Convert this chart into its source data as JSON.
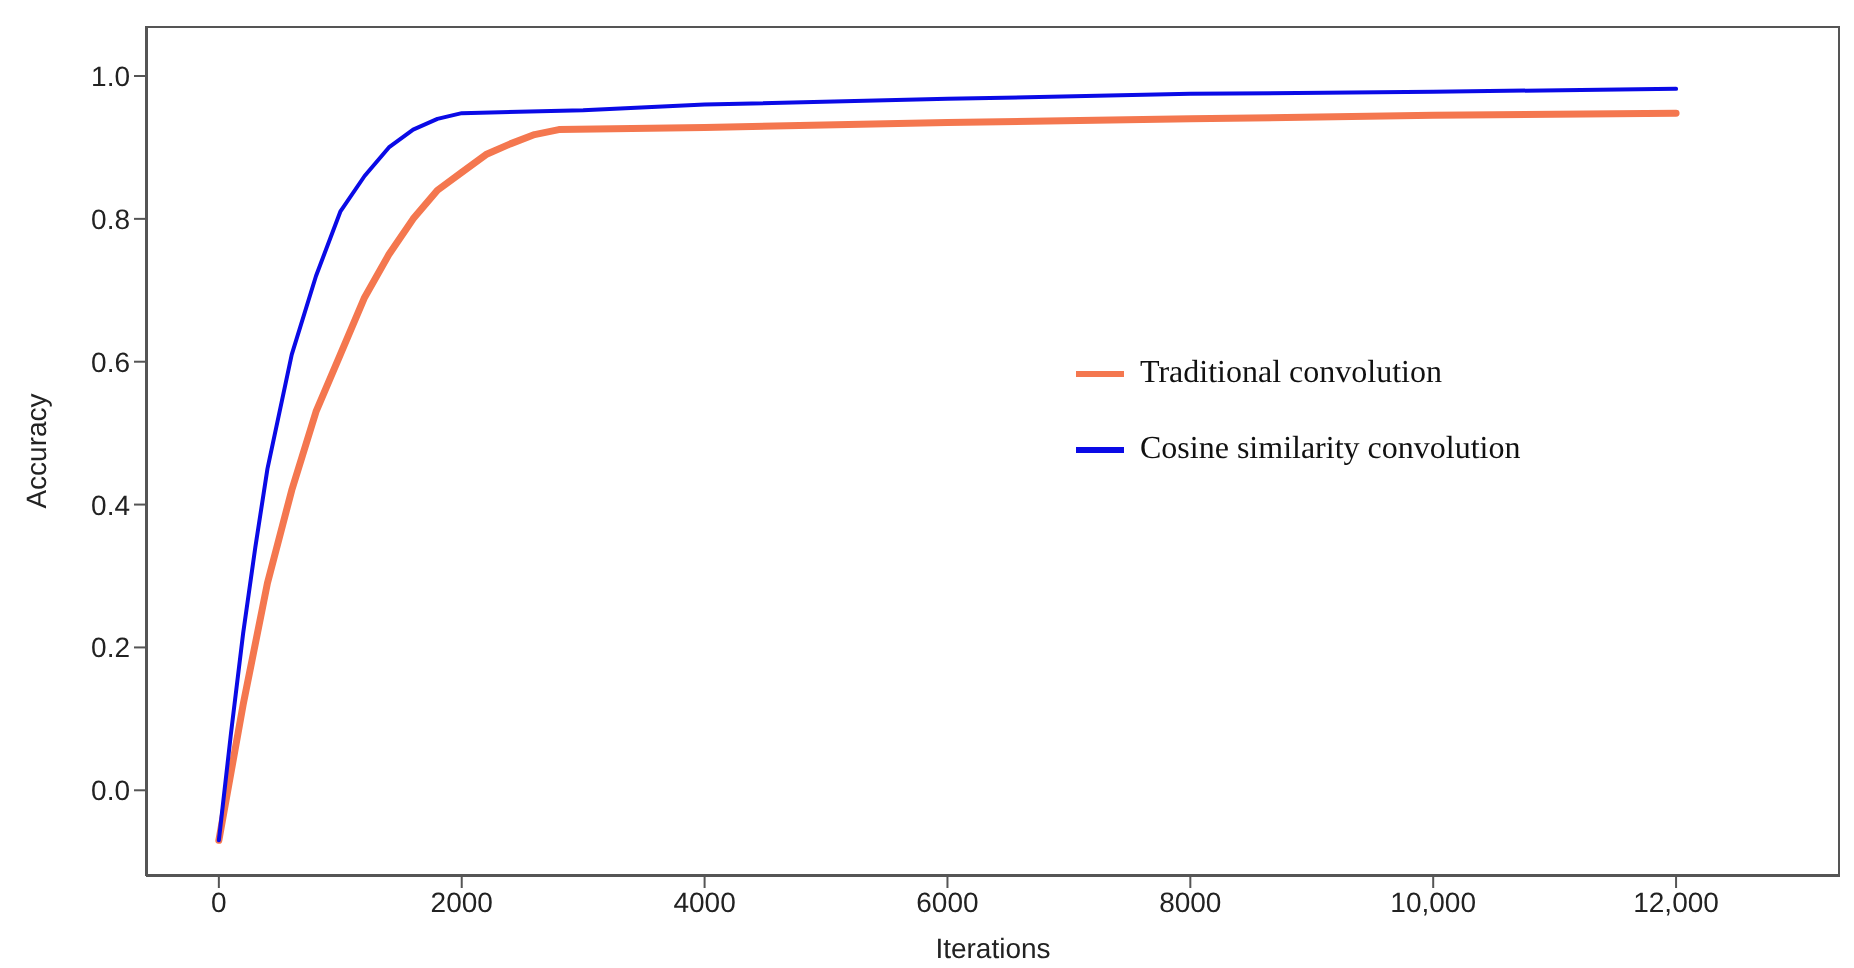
{
  "chart_data": {
    "type": "line",
    "xlabel": "Iterations",
    "ylabel": "Accuracy",
    "xlim": [
      -600,
      13350
    ],
    "xticks": [
      0,
      2000,
      4000,
      6000,
      8000,
      {
        "value": 10000,
        "label": "10,000"
      },
      {
        "value": 12000,
        "label": "12,000"
      }
    ],
    "ylim": [
      -0.12,
      1.07
    ],
    "yticks": [
      {
        "value": 0,
        "label": "0.0"
      },
      0.2,
      0.4,
      0.6,
      0.8,
      {
        "value": 1,
        "label": "1.0"
      }
    ],
    "grid": false,
    "legend": "right",
    "marker": "none",
    "line_style": "solid",
    "series": [
      {
        "name": "Traditional convolution",
        "color": "#f4774f",
        "x": [
          0,
          200,
          400,
          600,
          800,
          1000,
          1200,
          1400,
          1600,
          1800,
          2000,
          2200,
          2400,
          2600,
          2800,
          4000,
          6000,
          8000,
          10000,
          12000
        ],
        "values": [
          -0.07,
          0.12,
          0.29,
          0.42,
          0.53,
          0.61,
          0.69,
          0.75,
          0.8,
          0.84,
          0.865,
          0.89,
          0.905,
          0.918,
          0.925,
          0.928,
          0.935,
          0.94,
          0.945,
          0.948
        ]
      },
      {
        "name": "Cosine similarity convolution",
        "color": "#0a0ae6",
        "x": [
          0,
          100,
          200,
          300,
          400,
          600,
          800,
          1000,
          1200,
          1400,
          1600,
          1800,
          2000,
          3000,
          4000,
          6000,
          8000,
          10000,
          12000
        ],
        "values": [
          -0.07,
          0.08,
          0.22,
          0.34,
          0.45,
          0.61,
          0.72,
          0.81,
          0.86,
          0.9,
          0.925,
          0.94,
          0.948,
          0.952,
          0.96,
          0.968,
          0.975,
          0.978,
          0.982
        ]
      }
    ]
  }
}
